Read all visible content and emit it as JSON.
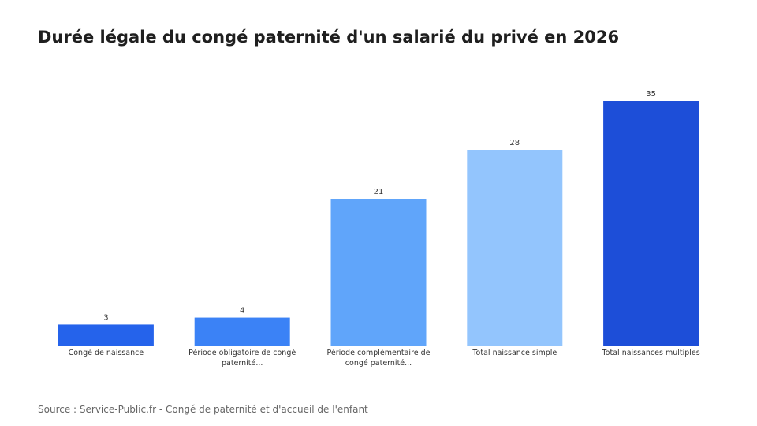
{
  "title": "Durée légale du congé paternité d'un salarié du privé en 2026",
  "source": "Source : Service-Public.fr - Congé de paternité et d'accueil de l'enfant",
  "colors": {
    "background": "#ffffff",
    "title": "#1f1f1f",
    "source": "#666666",
    "value_label": "#333333",
    "category_label": "#333333"
  },
  "chart_data": {
    "type": "bar",
    "categories": [
      [
        "Congé de naissance"
      ],
      [
        "Période obligatoire de congé",
        "paternité..."
      ],
      [
        "Période complémentaire de",
        "congé paternité..."
      ],
      [
        "Total naissance simple"
      ],
      [
        "Total naissances multiples"
      ]
    ],
    "values": [
      3,
      4,
      21,
      28,
      35
    ],
    "bar_colors": [
      "#2563eb",
      "#3b82f6",
      "#60a5fa",
      "#93c5fd",
      "#1d4ed8"
    ],
    "ylim": [
      0,
      35
    ],
    "grid": false,
    "legend": "none",
    "axes_visible": false,
    "data_labels": true
  }
}
